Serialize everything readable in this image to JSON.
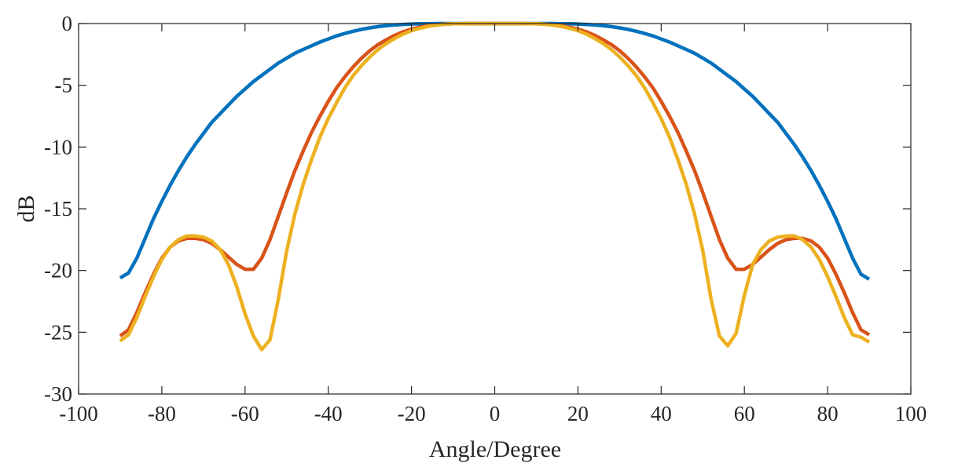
{
  "chart_data": {
    "type": "line",
    "title": "",
    "xlabel": "Angle/Degree",
    "ylabel": "dB",
    "xlim": [
      -100,
      100
    ],
    "ylim": [
      -30,
      0
    ],
    "xticks": [
      -100,
      -80,
      -60,
      -40,
      -20,
      0,
      20,
      40,
      60,
      80,
      100
    ],
    "yticks": [
      0,
      -5,
      -10,
      -15,
      -20,
      -25,
      -30
    ],
    "xtick_labels": [
      "-100",
      "-80",
      "-60",
      "-40",
      "-20",
      "0",
      "20",
      "40",
      "60",
      "80",
      "100"
    ],
    "ytick_labels": [
      "0",
      "-5",
      "-10",
      "-15",
      "-20",
      "-25",
      "-30"
    ],
    "grid": false,
    "legend": "none",
    "x": [
      -90,
      -88,
      -86,
      -84,
      -82,
      -80,
      -78,
      -76,
      -74,
      -72,
      -70,
      -68,
      -66,
      -64,
      -62,
      -60,
      -58,
      -56,
      -54,
      -52,
      -50,
      -48,
      -46,
      -44,
      -42,
      -40,
      -38,
      -36,
      -34,
      -32,
      -30,
      -28,
      -26,
      -24,
      -22,
      -20,
      -18,
      -16,
      -14,
      -12,
      -10,
      -8,
      -6,
      -4,
      -2,
      0,
      2,
      4,
      6,
      8,
      10,
      12,
      14,
      16,
      18,
      20,
      22,
      24,
      26,
      28,
      30,
      32,
      34,
      36,
      38,
      40,
      42,
      44,
      46,
      48,
      50,
      52,
      54,
      56,
      58,
      60,
      62,
      64,
      66,
      68,
      70,
      72,
      74,
      76,
      78,
      80,
      82,
      84,
      86,
      88,
      90
    ],
    "series": [
      {
        "color": "#0072BD",
        "values": [
          -20.6,
          -20.2,
          -19.0,
          -17.4,
          -15.8,
          -14.4,
          -13.1,
          -11.9,
          -10.8,
          -9.8,
          -8.9,
          -8.0,
          -7.3,
          -6.6,
          -5.9,
          -5.3,
          -4.7,
          -4.2,
          -3.7,
          -3.2,
          -2.8,
          -2.4,
          -2.1,
          -1.8,
          -1.5,
          -1.25,
          -1.0,
          -0.8,
          -0.62,
          -0.47,
          -0.35,
          -0.25,
          -0.17,
          -0.11,
          -0.07,
          -0.04,
          -0.02,
          -0.01,
          0,
          0,
          0,
          0,
          0,
          0,
          0,
          0,
          0,
          0,
          0,
          0,
          0,
          0,
          0,
          -0.01,
          -0.02,
          -0.04,
          -0.07,
          -0.11,
          -0.17,
          -0.25,
          -0.35,
          -0.47,
          -0.62,
          -0.8,
          -1.0,
          -1.25,
          -1.5,
          -1.8,
          -2.1,
          -2.4,
          -2.8,
          -3.2,
          -3.7,
          -4.2,
          -4.7,
          -5.3,
          -5.9,
          -6.6,
          -7.3,
          -8.0,
          -8.9,
          -9.8,
          -10.8,
          -11.9,
          -13.1,
          -14.4,
          -15.8,
          -17.4,
          -19.0,
          -20.3,
          -20.7
        ]
      },
      {
        "color": "#D95319",
        "values": [
          -25.3,
          -24.8,
          -23.4,
          -21.8,
          -20.3,
          -19.0,
          -18.1,
          -17.6,
          -17.4,
          -17.4,
          -17.5,
          -17.8,
          -18.3,
          -18.9,
          -19.5,
          -19.9,
          -19.9,
          -19.0,
          -17.5,
          -15.6,
          -13.7,
          -11.9,
          -10.3,
          -8.8,
          -7.5,
          -6.3,
          -5.2,
          -4.3,
          -3.5,
          -2.8,
          -2.2,
          -1.7,
          -1.3,
          -0.95,
          -0.67,
          -0.45,
          -0.3,
          -0.18,
          -0.1,
          -0.05,
          -0.02,
          -0.01,
          0,
          0,
          0,
          0,
          0,
          0,
          0,
          -0.01,
          -0.02,
          -0.05,
          -0.1,
          -0.18,
          -0.3,
          -0.45,
          -0.67,
          -0.95,
          -1.3,
          -1.7,
          -2.2,
          -2.8,
          -3.5,
          -4.3,
          -5.2,
          -6.3,
          -7.5,
          -8.8,
          -10.3,
          -11.9,
          -13.7,
          -15.6,
          -17.5,
          -19.0,
          -19.9,
          -19.9,
          -19.5,
          -18.9,
          -18.3,
          -17.8,
          -17.5,
          -17.4,
          -17.4,
          -17.6,
          -18.1,
          -19.0,
          -20.3,
          -21.8,
          -23.4,
          -24.8,
          -25.2
        ]
      },
      {
        "color": "#EDB120",
        "values": [
          -25.7,
          -25.2,
          -23.8,
          -22.1,
          -20.5,
          -19.1,
          -18.1,
          -17.5,
          -17.2,
          -17.2,
          -17.3,
          -17.6,
          -18.3,
          -19.5,
          -21.3,
          -23.5,
          -25.3,
          -26.4,
          -25.6,
          -22.3,
          -18.4,
          -15.4,
          -13.0,
          -11.0,
          -9.2,
          -7.7,
          -6.4,
          -5.2,
          -4.2,
          -3.4,
          -2.7,
          -2.1,
          -1.6,
          -1.2,
          -0.85,
          -0.58,
          -0.38,
          -0.23,
          -0.13,
          -0.06,
          -0.02,
          -0.01,
          0,
          0,
          0,
          0,
          0,
          0,
          0,
          -0.01,
          -0.02,
          -0.06,
          -0.13,
          -0.23,
          -0.38,
          -0.58,
          -0.85,
          -1.2,
          -1.6,
          -2.1,
          -2.7,
          -3.4,
          -4.2,
          -5.2,
          -6.4,
          -7.7,
          -9.2,
          -11.0,
          -13.0,
          -15.4,
          -18.4,
          -22.3,
          -25.3,
          -26.1,
          -25.1,
          -22.0,
          -19.5,
          -18.3,
          -17.6,
          -17.3,
          -17.2,
          -17.2,
          -17.5,
          -18.1,
          -19.1,
          -20.5,
          -22.1,
          -23.8,
          -25.2,
          -25.4,
          -25.8
        ]
      }
    ]
  }
}
